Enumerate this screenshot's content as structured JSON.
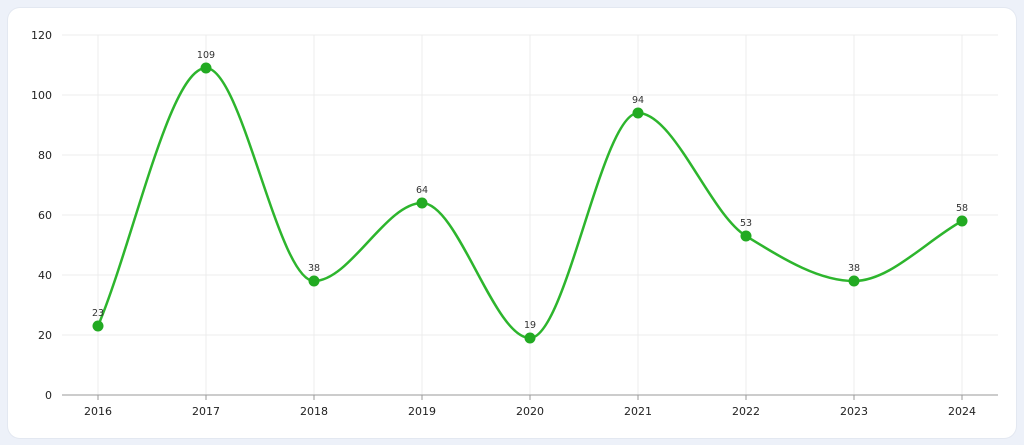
{
  "chart_data": {
    "type": "line",
    "categories": [
      "2016",
      "2017",
      "2018",
      "2019",
      "2020",
      "2021",
      "2022",
      "2023",
      "2024"
    ],
    "series": [
      {
        "values": [
          23,
          109,
          38,
          64,
          19,
          94,
          53,
          38,
          58
        ]
      }
    ],
    "y_ticks": [
      "0",
      "20",
      "40",
      "60",
      "80",
      "100",
      "120"
    ],
    "ylim": [
      0,
      120
    ],
    "grid": true,
    "smooth": true,
    "line_color": "#2db52d",
    "marker_color": "#22aa22"
  }
}
